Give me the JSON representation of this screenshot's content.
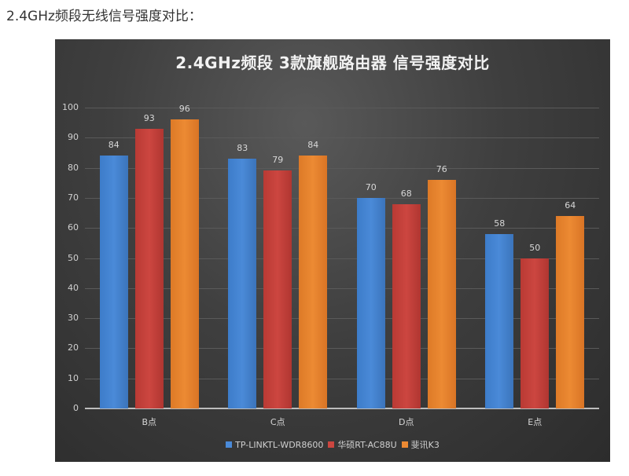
{
  "caption": "2.4GHz频段无线信号强度对比：",
  "colors": {
    "s0": "#4a8ad8",
    "s1": "#cc4640",
    "s2": "#ec8a33",
    "background": "#3f3f3f"
  },
  "chart_data": {
    "type": "bar",
    "title": "2.4GHz频段 3款旗舰路由器 信号强度对比",
    "xlabel": "",
    "ylabel": "",
    "ylim": [
      0,
      100
    ],
    "yticks": [
      0,
      10,
      20,
      30,
      40,
      50,
      60,
      70,
      80,
      90,
      100
    ],
    "grid": true,
    "legend_position": "bottom",
    "categories": [
      "B点",
      "C点",
      "D点",
      "E点"
    ],
    "series": [
      {
        "name": "TP-LINKTL-WDR8600",
        "values": [
          84,
          83,
          70,
          58
        ]
      },
      {
        "name": "华硕RT-AC88U",
        "values": [
          93,
          79,
          68,
          50
        ]
      },
      {
        "name": "斐讯K3",
        "values": [
          96,
          84,
          76,
          64
        ]
      }
    ]
  }
}
